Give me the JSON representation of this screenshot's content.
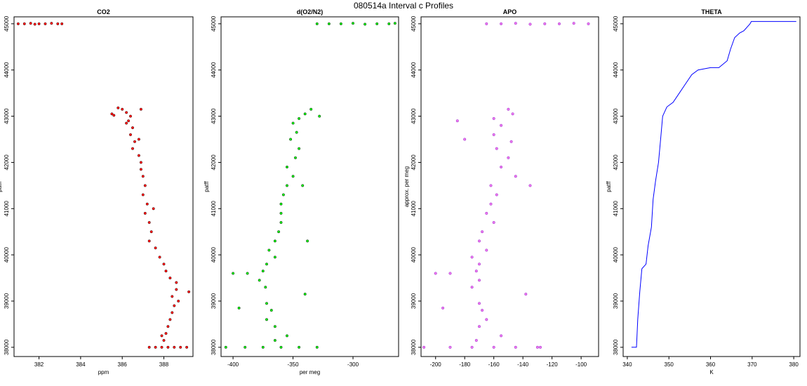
{
  "figure": {
    "title": "080514a   Interval c Profiles"
  },
  "chart_data": [
    {
      "type": "scatter",
      "title": "CO2",
      "xlabel": "ppm",
      "ylabel": "patff",
      "xlim": [
        380.8,
        389.4
      ],
      "ylim": [
        37800,
        45150
      ],
      "xticks": [
        382,
        384,
        386,
        388
      ],
      "yticks": [
        38000,
        39000,
        40000,
        41000,
        42000,
        43000,
        44000,
        45000
      ],
      "color": "#ff0000",
      "outline_color": "#333333",
      "series": [
        {
          "values": [
            [
              381.0,
              45000
            ],
            [
              381.3,
              45000
            ],
            [
              381.6,
              45010
            ],
            [
              381.8,
              44990
            ],
            [
              382.0,
              45000
            ],
            [
              382.3,
              45000
            ],
            [
              382.6,
              45010
            ],
            [
              382.9,
              45000
            ],
            [
              383.1,
              45000
            ],
            [
              385.8,
              43180
            ],
            [
              386.0,
              43150
            ],
            [
              386.2,
              43080
            ],
            [
              386.4,
              43000
            ],
            [
              385.6,
              43020
            ],
            [
              386.9,
              43150
            ],
            [
              386.3,
              42900
            ],
            [
              386.5,
              42750
            ],
            [
              386.4,
              42600
            ],
            [
              386.6,
              42450
            ],
            [
              386.5,
              42300
            ],
            [
              386.8,
              42150
            ],
            [
              386.9,
              42000
            ],
            [
              386.9,
              41850
            ],
            [
              387.0,
              41700
            ],
            [
              387.1,
              41500
            ],
            [
              387.0,
              41300
            ],
            [
              387.2,
              41100
            ],
            [
              387.1,
              40900
            ],
            [
              387.3,
              40700
            ],
            [
              387.4,
              40500
            ],
            [
              387.3,
              40300
            ],
            [
              387.6,
              40150
            ],
            [
              387.8,
              39950
            ],
            [
              388.0,
              39800
            ],
            [
              388.1,
              39650
            ],
            [
              388.3,
              39500
            ],
            [
              388.6,
              39400
            ],
            [
              388.6,
              39250
            ],
            [
              388.4,
              39100
            ],
            [
              388.5,
              38900
            ],
            [
              388.4,
              38750
            ],
            [
              388.3,
              38600
            ],
            [
              388.2,
              38450
            ],
            [
              388.1,
              38300
            ],
            [
              388.0,
              38150
            ],
            [
              387.3,
              38000
            ],
            [
              387.6,
              38000
            ],
            [
              387.9,
              38000
            ],
            [
              388.2,
              38000
            ],
            [
              388.5,
              38000
            ],
            [
              388.8,
              38000
            ],
            [
              389.1,
              38000
            ],
            [
              385.5,
              43050
            ],
            [
              386.8,
              42500
            ],
            [
              388.7,
              39000
            ],
            [
              387.9,
              38250
            ],
            [
              389.2,
              39200
            ],
            [
              387.5,
              41000
            ],
            [
              386.2,
              42850
            ]
          ]
        }
      ]
    },
    {
      "type": "scatter",
      "title": "d(O2/N2)",
      "xlabel": "per meg",
      "ylabel": "patff",
      "xlim": [
        -410,
        -262
      ],
      "ylim": [
        37800,
        45150
      ],
      "xticks": [
        -400,
        -350,
        -300
      ],
      "yticks": [
        38000,
        39000,
        40000,
        41000,
        42000,
        43000,
        44000,
        45000
      ],
      "color": "#00ee00",
      "outline_color": "#333333",
      "series": [
        {
          "values": [
            [
              -330,
              45000
            ],
            [
              -320,
              45000
            ],
            [
              -310,
              45000
            ],
            [
              -300,
              45010
            ],
            [
              -290,
              44990
            ],
            [
              -280,
              45000
            ],
            [
              -270,
              45000
            ],
            [
              -265,
              45010
            ],
            [
              -335,
              43150
            ],
            [
              -340,
              43050
            ],
            [
              -345,
              42950
            ],
            [
              -350,
              42850
            ],
            [
              -347,
              42650
            ],
            [
              -352,
              42500
            ],
            [
              -345,
              42300
            ],
            [
              -348,
              42100
            ],
            [
              -355,
              41900
            ],
            [
              -350,
              41700
            ],
            [
              -355,
              41500
            ],
            [
              -358,
              41300
            ],
            [
              -360,
              41100
            ],
            [
              -360,
              40900
            ],
            [
              -360,
              40700
            ],
            [
              -362,
              40500
            ],
            [
              -365,
              40300
            ],
            [
              -370,
              40100
            ],
            [
              -365,
              39950
            ],
            [
              -372,
              39800
            ],
            [
              -375,
              39650
            ],
            [
              -388,
              39600
            ],
            [
              -378,
              39450
            ],
            [
              -373,
              39300
            ],
            [
              -340,
              39150
            ],
            [
              -372,
              38950
            ],
            [
              -368,
              38800
            ],
            [
              -372,
              38600
            ],
            [
              -365,
              38450
            ],
            [
              -355,
              38250
            ],
            [
              -365,
              38150
            ],
            [
              -390,
              38000
            ],
            [
              -375,
              38000
            ],
            [
              -360,
              38000
            ],
            [
              -345,
              38000
            ],
            [
              -330,
              38000
            ],
            [
              -328,
              43000
            ],
            [
              -400,
              39600
            ],
            [
              -395,
              38850
            ],
            [
              -338,
              40300
            ],
            [
              -342,
              41500
            ],
            [
              -406,
              38000
            ]
          ]
        }
      ]
    },
    {
      "type": "scatter",
      "title": "APO",
      "xlabel": "",
      "ylabel": "approx. per meg",
      "xlim": [
        -210,
        -88
      ],
      "ylim": [
        37800,
        45150
      ],
      "xticks": [
        -200,
        -180,
        -160,
        -140,
        -120,
        -100
      ],
      "yticks": [
        38000,
        39000,
        40000,
        41000,
        42000,
        43000,
        44000,
        45000
      ],
      "color": "#ee77ee",
      "outline_color": "#9933cc",
      "series": [
        {
          "values": [
            [
              -165,
              45000
            ],
            [
              -155,
              45000
            ],
            [
              -145,
              45010
            ],
            [
              -135,
              44990
            ],
            [
              -125,
              45000
            ],
            [
              -115,
              45000
            ],
            [
              -105,
              45010
            ],
            [
              -95,
              45000
            ],
            [
              -150,
              43150
            ],
            [
              -147,
              43050
            ],
            [
              -160,
              42950
            ],
            [
              -155,
              42800
            ],
            [
              -160,
              42600
            ],
            [
              -148,
              42450
            ],
            [
              -158,
              42300
            ],
            [
              -150,
              42100
            ],
            [
              -155,
              41900
            ],
            [
              -145,
              41700
            ],
            [
              -162,
              41500
            ],
            [
              -158,
              41300
            ],
            [
              -162,
              41100
            ],
            [
              -165,
              40900
            ],
            [
              -160,
              40700
            ],
            [
              -168,
              40500
            ],
            [
              -170,
              40300
            ],
            [
              -165,
              40100
            ],
            [
              -175,
              39950
            ],
            [
              -170,
              39800
            ],
            [
              -172,
              39650
            ],
            [
              -190,
              39600
            ],
            [
              -170,
              39450
            ],
            [
              -175,
              39300
            ],
            [
              -138,
              39150
            ],
            [
              -170,
              38950
            ],
            [
              -168,
              38800
            ],
            [
              -165,
              38600
            ],
            [
              -170,
              38450
            ],
            [
              -155,
              38250
            ],
            [
              -172,
              38150
            ],
            [
              -190,
              38000
            ],
            [
              -175,
              38000
            ],
            [
              -160,
              38000
            ],
            [
              -145,
              38000
            ],
            [
              -130,
              38000
            ],
            [
              -200,
              39600
            ],
            [
              -195,
              38850
            ],
            [
              -180,
              42500
            ],
            [
              -135,
              41500
            ],
            [
              -128,
              38000
            ],
            [
              -208,
              38000
            ],
            [
              -185,
              42900
            ]
          ]
        }
      ]
    },
    {
      "type": "line",
      "title": "THETA",
      "xlabel": "K",
      "ylabel": "patff",
      "xlim": [
        339,
        381.5
      ],
      "ylim": [
        37800,
        45150
      ],
      "xticks": [
        340,
        350,
        360,
        370,
        380
      ],
      "yticks": [
        38000,
        39000,
        40000,
        41000,
        42000,
        43000,
        44000,
        45000
      ],
      "color": "#0000ff",
      "series": [
        {
          "values": [
            [
              341,
              38000
            ],
            [
              342.2,
              38000
            ],
            [
              342.5,
              38600
            ],
            [
              343.0,
              39200
            ],
            [
              343.5,
              39700
            ],
            [
              344.5,
              39800
            ],
            [
              345.0,
              40200
            ],
            [
              345.8,
              40600
            ],
            [
              346.2,
              41200
            ],
            [
              346.8,
              41600
            ],
            [
              347.5,
              42000
            ],
            [
              348.0,
              42500
            ],
            [
              348.5,
              43000
            ],
            [
              349.5,
              43200
            ],
            [
              351.0,
              43300
            ],
            [
              352.5,
              43500
            ],
            [
              354.0,
              43700
            ],
            [
              355.5,
              43900
            ],
            [
              357.0,
              44000
            ],
            [
              360.0,
              44050
            ],
            [
              362.0,
              44050
            ],
            [
              364.0,
              44200
            ],
            [
              364.8,
              44450
            ],
            [
              365.8,
              44700
            ],
            [
              367.0,
              44800
            ],
            [
              368.0,
              44850
            ],
            [
              369.5,
              45000
            ],
            [
              369.8,
              45050
            ],
            [
              373.0,
              45050
            ],
            [
              376.0,
              45050
            ],
            [
              378.0,
              45050
            ],
            [
              380.6,
              45050
            ]
          ]
        }
      ]
    }
  ]
}
